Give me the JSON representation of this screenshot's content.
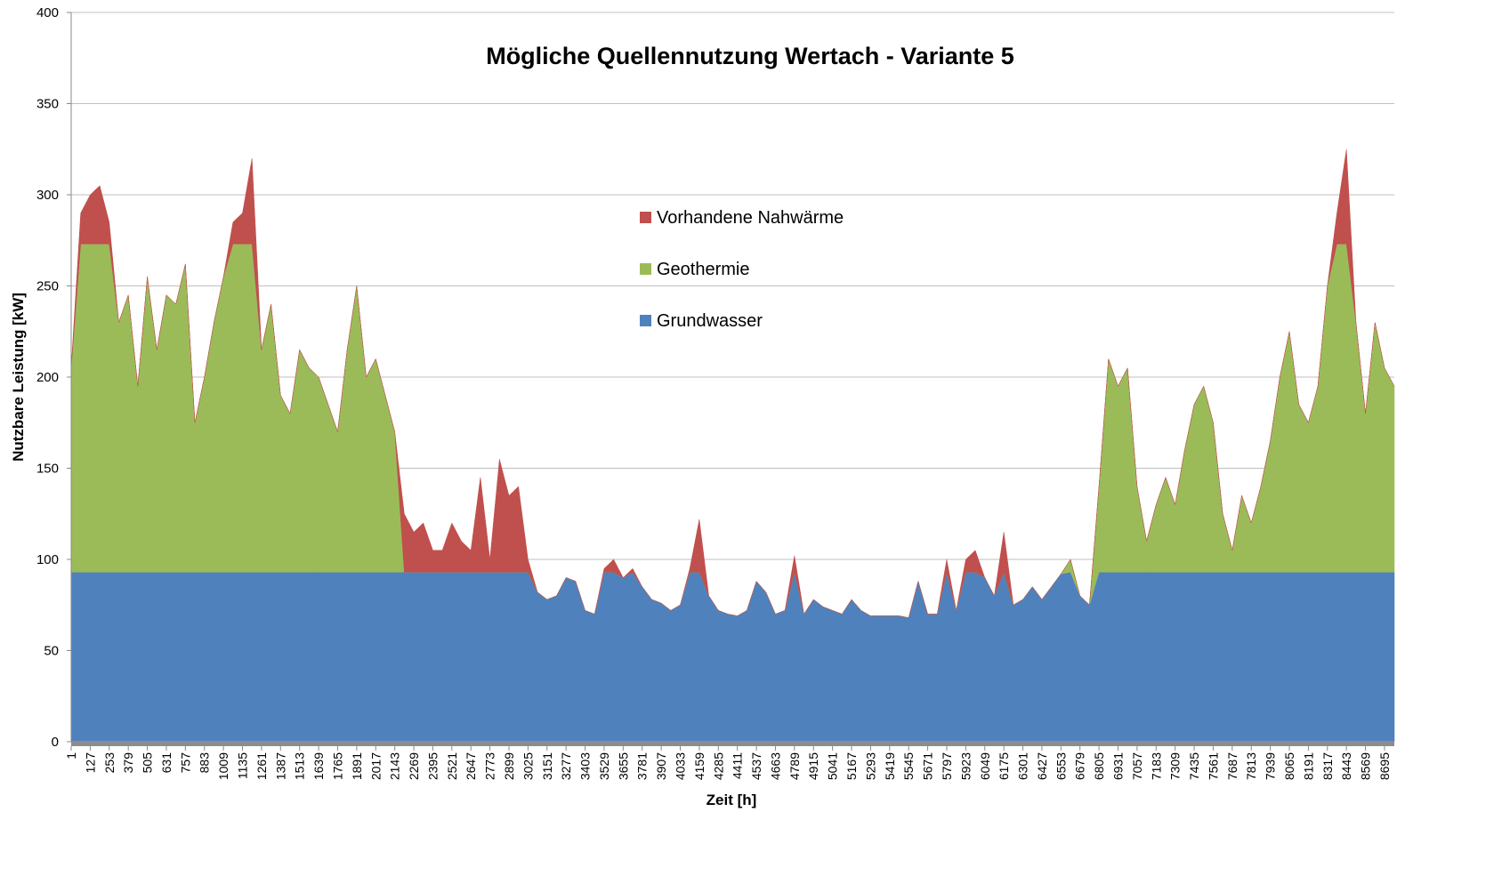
{
  "chart_data": {
    "type": "stacked_area",
    "title": "Mögliche Quellennutzung Wertach - Variante 5",
    "xlabel": "Zeit [h]",
    "ylabel": "Nutzbare Leistung [kW]",
    "ylim": [
      0,
      400
    ],
    "yticks": [
      0,
      50,
      100,
      150,
      200,
      250,
      300,
      350,
      400
    ],
    "xlim": [
      1,
      8760
    ],
    "xticks": [
      1,
      127,
      253,
      379,
      505,
      631,
      757,
      883,
      1009,
      1135,
      1261,
      1387,
      1513,
      1639,
      1765,
      1891,
      2017,
      2143,
      2269,
      2395,
      2521,
      2647,
      2773,
      2899,
      3025,
      3151,
      3277,
      3403,
      3529,
      3655,
      3781,
      3907,
      4033,
      4159,
      4285,
      4411,
      4537,
      4663,
      4789,
      4915,
      5041,
      5167,
      5293,
      5419,
      5545,
      5671,
      5797,
      5923,
      6049,
      6175,
      6301,
      6427,
      6553,
      6679,
      6805,
      6931,
      7057,
      7183,
      7309,
      7435,
      7561,
      7687,
      7813,
      7939,
      8065,
      8191,
      8317,
      8443,
      8569,
      8695
    ],
    "grid": true,
    "legend": "center",
    "x": [
      1,
      64,
      127,
      190,
      253,
      316,
      379,
      442,
      505,
      568,
      631,
      694,
      757,
      820,
      883,
      946,
      1009,
      1072,
      1135,
      1198,
      1261,
      1324,
      1387,
      1450,
      1513,
      1576,
      1639,
      1702,
      1765,
      1828,
      1891,
      1954,
      2017,
      2080,
      2143,
      2206,
      2269,
      2332,
      2395,
      2458,
      2521,
      2584,
      2647,
      2710,
      2773,
      2836,
      2899,
      2962,
      3025,
      3088,
      3151,
      3214,
      3277,
      3340,
      3403,
      3466,
      3529,
      3592,
      3655,
      3718,
      3781,
      3844,
      3907,
      3970,
      4033,
      4096,
      4159,
      4222,
      4285,
      4348,
      4411,
      4474,
      4537,
      4600,
      4663,
      4726,
      4789,
      4852,
      4915,
      4978,
      5041,
      5104,
      5167,
      5230,
      5293,
      5356,
      5419,
      5482,
      5545,
      5608,
      5671,
      5734,
      5797,
      5860,
      5923,
      5986,
      6049,
      6112,
      6175,
      6238,
      6301,
      6364,
      6427,
      6490,
      6553,
      6616,
      6679,
      6742,
      6805,
      6868,
      6931,
      6994,
      7057,
      7120,
      7183,
      7246,
      7309,
      7372,
      7435,
      7498,
      7561,
      7624,
      7687,
      7750,
      7813,
      7876,
      7939,
      8002,
      8065,
      8128,
      8191,
      8254,
      8317,
      8380,
      8443,
      8506,
      8569,
      8632,
      8695,
      8760
    ],
    "series": [
      {
        "name": "Grundwasser",
        "color": "#4f81bd",
        "values": [
          93,
          93,
          93,
          93,
          93,
          93,
          93,
          93,
          93,
          93,
          93,
          93,
          93,
          93,
          93,
          93,
          93,
          93,
          93,
          93,
          93,
          93,
          93,
          93,
          93,
          93,
          93,
          93,
          93,
          93,
          93,
          93,
          93,
          93,
          93,
          93,
          93,
          93,
          93,
          93,
          93,
          93,
          93,
          93,
          93,
          93,
          93,
          93,
          93,
          82,
          78,
          80,
          90,
          88,
          72,
          70,
          93,
          93,
          90,
          93,
          85,
          78,
          76,
          72,
          75,
          93,
          93,
          80,
          72,
          70,
          69,
          72,
          88,
          82,
          70,
          72,
          93,
          70,
          78,
          74,
          72,
          70,
          78,
          72,
          69,
          69,
          69,
          69,
          68,
          88,
          70,
          70,
          93,
          72,
          93,
          93,
          90,
          80,
          93,
          75,
          78,
          85,
          78,
          85,
          92,
          93,
          80,
          75,
          93,
          93,
          93,
          93,
          93,
          93,
          93,
          93,
          93,
          93,
          93,
          93,
          93,
          93,
          93,
          93,
          93,
          93,
          93,
          93,
          93,
          93,
          93,
          93,
          93,
          93,
          93,
          93,
          93,
          93,
          93,
          93
        ]
      },
      {
        "name": "Geothermie",
        "color": "#9bbb59",
        "values": [
          112,
          180,
          180,
          180,
          180,
          137,
          152,
          102,
          162,
          122,
          152,
          147,
          169,
          82,
          107,
          137,
          162,
          180,
          180,
          180,
          122,
          147,
          97,
          87,
          122,
          112,
          107,
          92,
          77,
          122,
          157,
          107,
          117,
          97,
          77,
          0,
          0,
          0,
          0,
          0,
          0,
          0,
          0,
          0,
          0,
          0,
          0,
          0,
          0,
          0,
          0,
          0,
          0,
          0,
          0,
          0,
          0,
          0,
          0,
          0,
          0,
          0,
          0,
          0,
          0,
          0,
          0,
          0,
          0,
          0,
          0,
          0,
          0,
          0,
          0,
          0,
          0,
          0,
          0,
          0,
          0,
          0,
          0,
          0,
          0,
          0,
          0,
          0,
          0,
          0,
          0,
          0,
          0,
          0,
          0,
          0,
          0,
          0,
          0,
          0,
          0,
          0,
          0,
          0,
          0,
          7,
          0,
          0,
          47,
          117,
          102,
          112,
          47,
          17,
          37,
          52,
          37,
          67,
          92,
          102,
          82,
          32,
          12,
          42,
          27,
          47,
          72,
          107,
          132,
          92,
          82,
          102,
          157,
          180,
          180,
          137,
          87,
          137,
          112,
          102
        ]
      },
      {
        "name": "Vorhandene Nahwärme",
        "color": "#c0504d",
        "values": [
          0,
          17,
          27,
          32,
          12,
          0,
          0,
          0,
          0,
          0,
          0,
          0,
          0,
          0,
          0,
          0,
          0,
          12,
          17,
          47,
          0,
          0,
          0,
          0,
          0,
          0,
          0,
          0,
          0,
          0,
          0,
          0,
          0,
          0,
          0,
          32,
          22,
          27,
          12,
          12,
          27,
          17,
          12,
          52,
          7,
          62,
          42,
          47,
          7,
          0,
          0,
          0,
          0,
          0,
          0,
          0,
          2,
          7,
          0,
          2,
          0,
          0,
          0,
          0,
          0,
          2,
          29,
          0,
          0,
          0,
          0,
          0,
          0,
          0,
          0,
          0,
          9,
          0,
          0,
          0,
          0,
          0,
          0,
          0,
          0,
          0,
          0,
          0,
          0,
          0,
          0,
          0,
          7,
          0,
          7,
          12,
          0,
          0,
          22,
          0,
          0,
          0,
          0,
          0,
          0,
          0,
          0,
          0,
          0,
          0,
          0,
          0,
          0,
          0,
          0,
          0,
          0,
          0,
          0,
          0,
          0,
          0,
          0,
          0,
          0,
          0,
          0,
          0,
          0,
          0,
          0,
          0,
          0,
          17,
          52,
          0,
          0,
          0,
          0,
          0
        ]
      }
    ]
  }
}
